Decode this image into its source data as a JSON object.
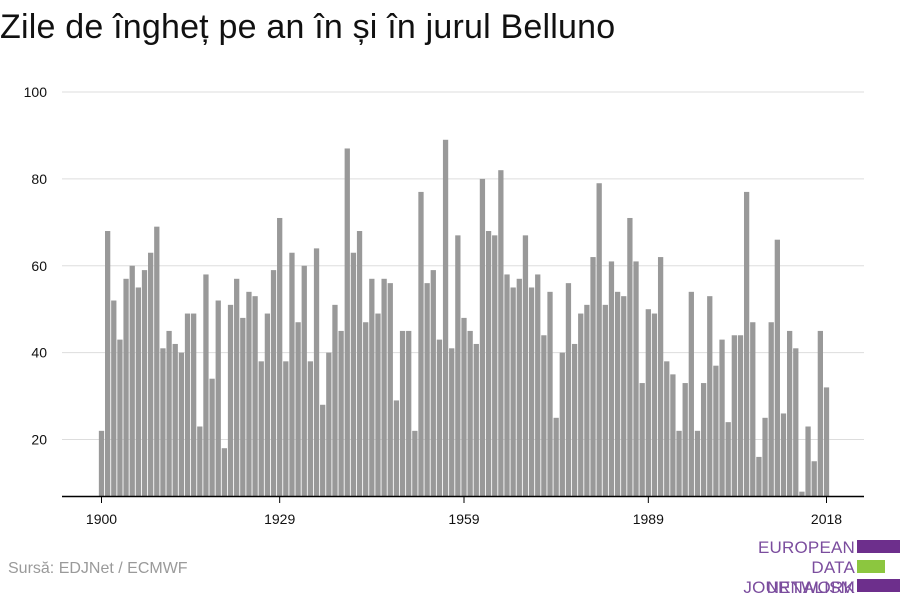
{
  "title": "Zile de îngheț pe an în și în jurul Belluno",
  "source": "Sursă: EDJNet / ECMWF",
  "logo": {
    "lines": [
      "EUROPEAN",
      "DATA JOURNALISM",
      "NETWORK"
    ],
    "colors": {
      "text": "#7b4d9e",
      "purple": "#6d2f8c",
      "green": "#8cc63f"
    }
  },
  "colors": {
    "bar": "#999999",
    "grid": "#dddddd",
    "axis": "#000000"
  },
  "chart_data": {
    "type": "bar",
    "title": "Zile de îngheț pe an în și în jurul Belluno",
    "xlabel": "",
    "ylabel": "",
    "x_start": 1900,
    "x_ticks": [
      1900,
      1929,
      1959,
      1989,
      2018
    ],
    "y_ticks": [
      20,
      40,
      60,
      80,
      100
    ],
    "ylim": [
      7,
      100
    ],
    "grid": true,
    "values": [
      22,
      68,
      52,
      43,
      57,
      60,
      55,
      59,
      63,
      69,
      41,
      45,
      42,
      40,
      49,
      49,
      23,
      58,
      34,
      52,
      18,
      51,
      57,
      48,
      54,
      53,
      38,
      49,
      59,
      71,
      38,
      63,
      47,
      60,
      38,
      64,
      28,
      40,
      51,
      45,
      87,
      63,
      68,
      47,
      57,
      49,
      57,
      56,
      29,
      45,
      45,
      22,
      77,
      56,
      59,
      43,
      89,
      41,
      67,
      48,
      45,
      42,
      80,
      68,
      67,
      82,
      58,
      55,
      57,
      67,
      55,
      58,
      44,
      54,
      25,
      40,
      56,
      42,
      49,
      51,
      62,
      79,
      51,
      61,
      54,
      53,
      71,
      61,
      33,
      50,
      49,
      62,
      38,
      35,
      22,
      33,
      54,
      22,
      33,
      53,
      37,
      43,
      24,
      44,
      44,
      77,
      47,
      16,
      25,
      47,
      66,
      26,
      45,
      41,
      8,
      23,
      15,
      45,
      32
    ]
  }
}
